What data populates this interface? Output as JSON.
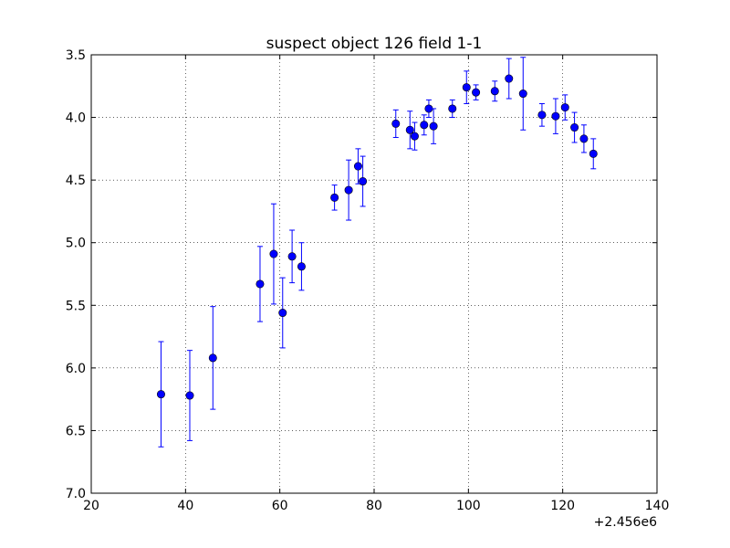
{
  "chart_data": {
    "type": "scatter",
    "title": "suspect object 126 field 1-1",
    "xlabel": "",
    "ylabel": "",
    "x_offset_label": "+2.456e6",
    "xlim": [
      20,
      140
    ],
    "ylim": [
      3.5,
      7.0
    ],
    "y_inverted": true,
    "grid": true,
    "x_ticks": [
      "20",
      "40",
      "60",
      "80",
      "100",
      "120",
      "140"
    ],
    "y_ticks": [
      "3.5",
      "4.0",
      "4.5",
      "5.0",
      "5.5",
      "6.0",
      "6.5",
      "7.0"
    ],
    "marker_color": "#0000ff",
    "errorbar_color": "#0000ff",
    "series": [
      {
        "x": [
          34.8,
          40.9,
          45.8,
          55.8,
          58.7,
          60.6,
          62.6,
          64.6,
          71.6,
          74.6,
          76.6,
          77.6,
          84.6,
          87.6,
          88.6,
          90.6,
          91.6,
          92.6,
          96.6,
          99.6,
          101.6,
          105.6,
          108.6,
          111.6,
          115.6,
          118.5,
          120.5,
          122.5,
          124.5,
          126.5
        ],
        "y": [
          6.21,
          6.22,
          5.92,
          5.33,
          5.09,
          5.56,
          5.11,
          5.19,
          4.64,
          4.58,
          4.39,
          4.51,
          4.05,
          4.1,
          4.15,
          4.06,
          3.93,
          4.07,
          3.93,
          3.76,
          3.8,
          3.79,
          3.69,
          3.81,
          3.98,
          3.99,
          3.92,
          4.08,
          4.17,
          4.29
        ],
        "err": [
          0.42,
          0.36,
          0.41,
          0.3,
          0.4,
          0.28,
          0.21,
          0.19,
          0.1,
          0.24,
          0.14,
          0.2,
          0.11,
          0.15,
          0.11,
          0.08,
          0.07,
          0.14,
          0.07,
          0.13,
          0.06,
          0.08,
          0.16,
          0.29,
          0.09,
          0.14,
          0.1,
          0.12,
          0.11,
          0.12
        ]
      }
    ]
  }
}
